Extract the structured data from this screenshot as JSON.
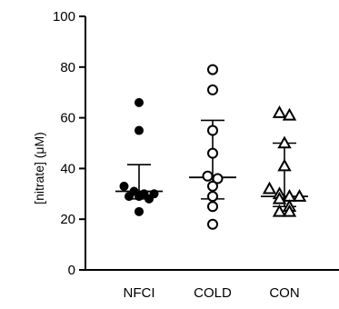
{
  "chart_data": {
    "type": "scatter",
    "ylabel": "[nitrate] (μM)",
    "ylim": [
      0,
      100
    ],
    "yticks": [
      0,
      20,
      40,
      60,
      80,
      100
    ],
    "yticklabels": [
      "0",
      "20",
      "40",
      "60",
      "80",
      "100"
    ],
    "categories": [
      "NFCI",
      "COLD",
      "CON"
    ],
    "colors": {
      "axis": "#000000",
      "marker": "#000000",
      "fill_background": "#ffffff"
    },
    "series": [
      {
        "category": "NFCI",
        "marker": "filled-circle",
        "values": [
          66,
          55,
          33,
          31,
          30,
          30,
          29,
          29,
          28,
          23
        ],
        "median": 31,
        "error_low": 28,
        "error_high": 41.5
      },
      {
        "category": "COLD",
        "marker": "open-circle",
        "values": [
          79,
          71,
          55,
          46,
          37,
          36,
          33,
          29,
          25,
          18
        ],
        "median": 36.5,
        "error_low": 28,
        "error_high": 59
      },
      {
        "category": "CON",
        "marker": "open-triangle",
        "values": [
          62,
          61,
          50,
          41,
          32,
          30,
          29,
          29,
          28,
          25,
          23,
          23
        ],
        "median": 29,
        "error_low": 25,
        "error_high": 50
      }
    ]
  }
}
